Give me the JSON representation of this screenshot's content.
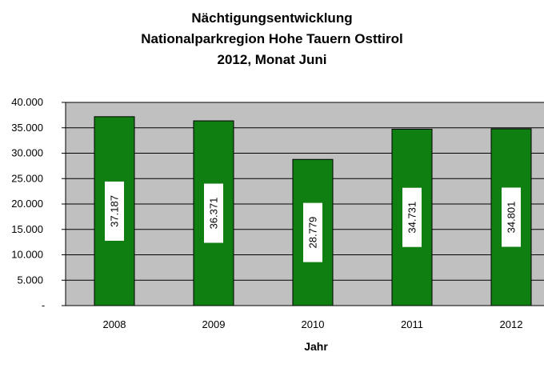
{
  "chart_data": {
    "type": "bar",
    "title_lines": [
      "Nächtigungsentwicklung",
      "Nationalparkregion Hohe Tauern Osttirol",
      "2012, Monat Juni"
    ],
    "categories": [
      "2008",
      "2009",
      "2010",
      "2011",
      "2012"
    ],
    "values": [
      37187,
      36371,
      28779,
      34731,
      34801
    ],
    "data_labels": [
      "37.187",
      "36.371",
      "28.779",
      "34.731",
      "34.801"
    ],
    "xlabel": "Jahr",
    "ylabel": "",
    "ylim": [
      0,
      40000
    ],
    "yticks": [
      0,
      5000,
      10000,
      15000,
      20000,
      25000,
      30000,
      35000,
      40000
    ],
    "ytick_labels": [
      "-",
      "5.000",
      "10.000",
      "15.000",
      "20.000",
      "25.000",
      "30.000",
      "35.000",
      "40.000"
    ],
    "grid": true,
    "legend": "none",
    "colors": {
      "bar": "#0f7f12",
      "plot_background": "#c0c0c0",
      "label_box": "#ffffff"
    }
  }
}
